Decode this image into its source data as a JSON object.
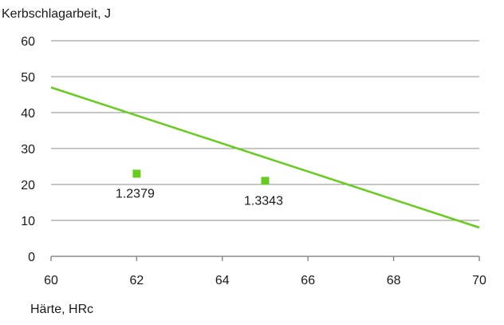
{
  "chart_data": {
    "type": "scatter",
    "title": "",
    "ylabel": "Kerbschlagarbeit, J",
    "xlabel": "Härte, HRc",
    "xlim": [
      60,
      70
    ],
    "ylim": [
      0,
      60
    ],
    "xticks": [
      "60",
      "62",
      "64",
      "66",
      "68",
      "70"
    ],
    "yticks": [
      "0",
      "10",
      "20",
      "30",
      "40",
      "50",
      "60"
    ],
    "grid": true,
    "legend": "none",
    "points": [
      {
        "label": "1.2379",
        "x": 62,
        "y": 23
      },
      {
        "label": "1.3343",
        "x": 65,
        "y": 21
      }
    ],
    "trendline": {
      "x": [
        60,
        70
      ],
      "y": [
        47,
        8
      ]
    },
    "colors": {
      "series": "#66cc1e",
      "grid": "#8c8c8c",
      "axis": "#8c8c8c"
    }
  }
}
